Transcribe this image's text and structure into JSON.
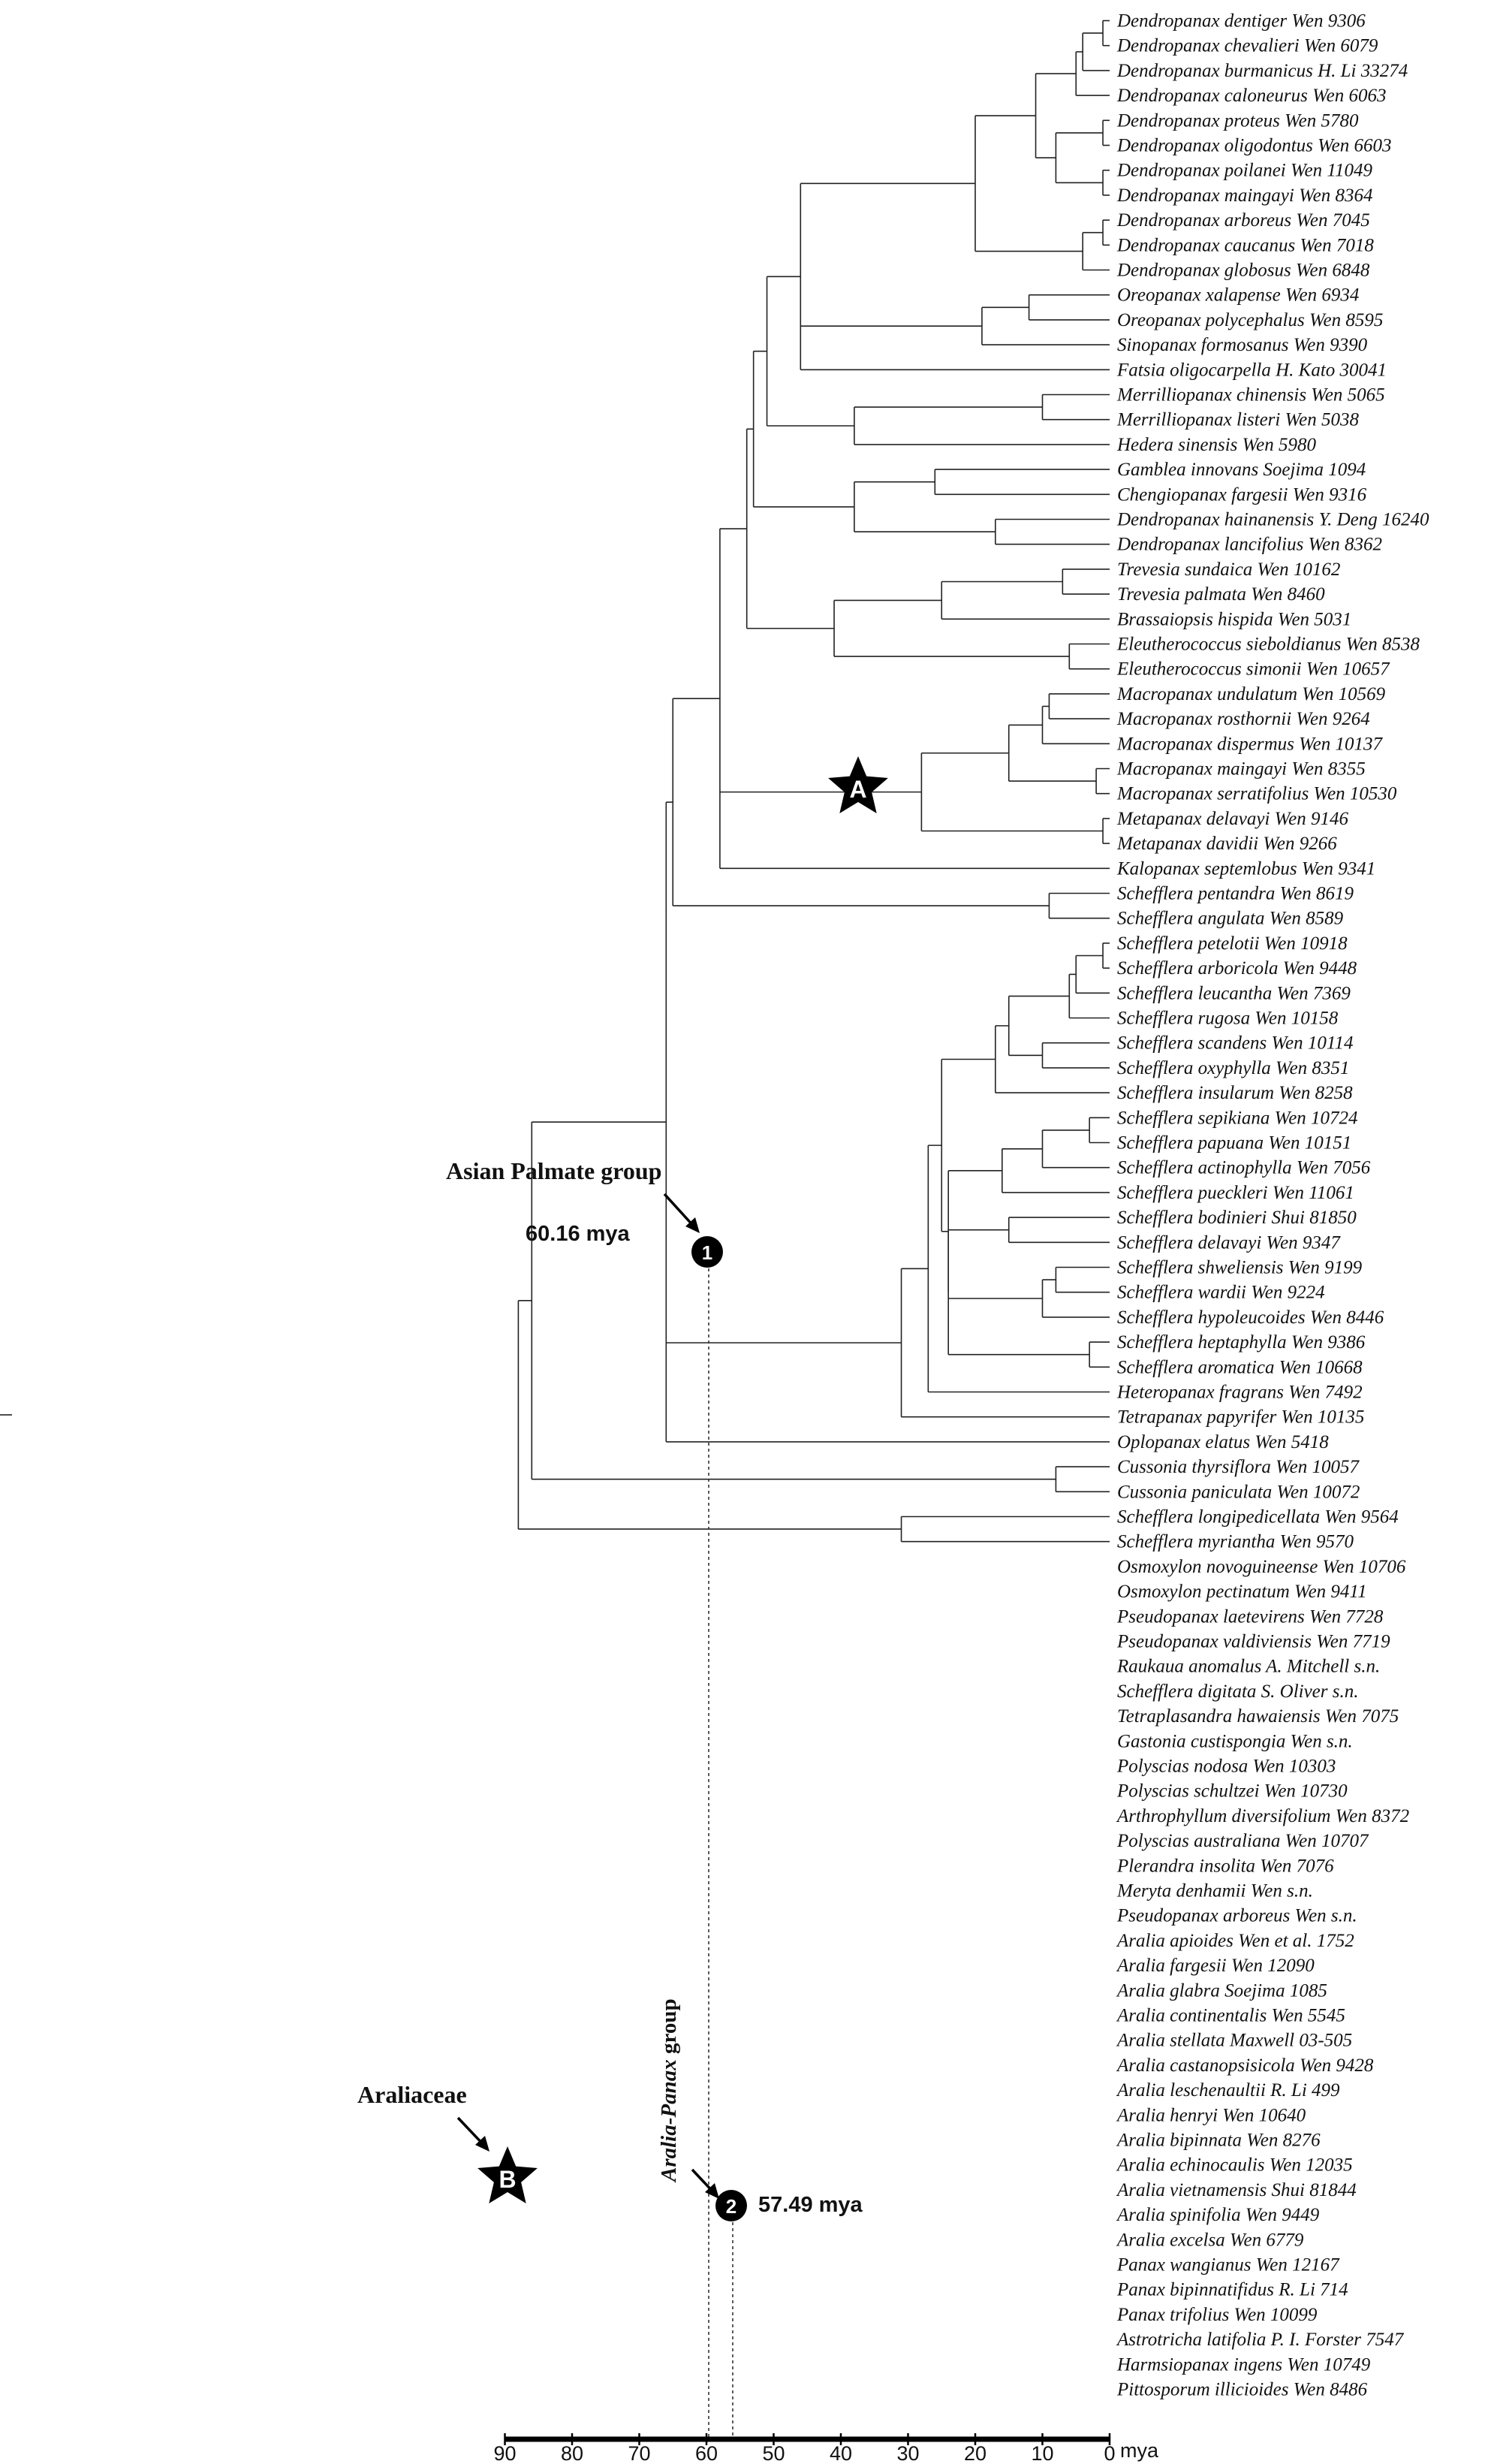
{
  "taxa": [
    "Dendropanax dentiger Wen 9306",
    "Dendropanax chevalieri Wen 6079",
    "Dendropanax burmanicus H. Li 33274",
    "Dendropanax caloneurus Wen 6063",
    "Dendropanax proteus Wen 5780",
    "Dendropanax oligodontus Wen 6603",
    "Dendropanax poilanei Wen 11049",
    "Dendropanax maingayi Wen 8364",
    "Dendropanax arboreus Wen 7045",
    "Dendropanax caucanus Wen 7018",
    "Dendropanax globosus Wen 6848",
    "Oreopanax xalapense Wen 6934",
    "Oreopanax polycephalus Wen 8595",
    "Sinopanax formosanus Wen 9390",
    "Fatsia oligocarpella H. Kato 30041",
    "Merrilliopanax chinensis Wen 5065",
    "Merrilliopanax listeri Wen 5038",
    "Hedera sinensis Wen 5980",
    "Gamblea innovans Soejima 1094",
    "Chengiopanax fargesii Wen 9316",
    "Dendropanax hainanensis Y. Deng 16240",
    "Dendropanax lancifolius Wen 8362",
    "Trevesia sundaica Wen 10162",
    "Trevesia palmata Wen 8460",
    "Brassaiopsis hispida Wen 5031",
    "Eleutherococcus sieboldianus Wen 8538",
    "Eleutherococcus simonii Wen 10657",
    "Macropanax undulatum Wen 10569",
    "Macropanax rosthornii Wen 9264",
    "Macropanax dispermus Wen 10137",
    "Macropanax maingayi Wen 8355",
    "Macropanax serratifolius Wen 10530",
    "Metapanax delavayi Wen 9146",
    "Metapanax davidii Wen 9266",
    "Kalopanax septemlobus Wen 9341",
    "Schefflera pentandra Wen 8619",
    "Schefflera angulata Wen 8589",
    "Schefflera petelotii Wen 10918",
    "Schefflera arboricola Wen 9448",
    "Schefflera leucantha Wen 7369",
    "Schefflera rugosa Wen 10158",
    "Schefflera scandens Wen 10114",
    "Schefflera oxyphylla Wen 8351",
    "Schefflera insularum Wen 8258",
    "Schefflera sepikiana Wen 10724",
    "Schefflera papuana Wen 10151",
    "Schefflera actinophylla Wen 7056",
    "Schefflera pueckleri Wen 11061",
    "Schefflera bodinieri Shui 81850",
    "Schefflera delavayi Wen 9347",
    "Schefflera shweliensis Wen 9199",
    "Schefflera wardii Wen 9224",
    "Schefflera hypoleucoides Wen 8446",
    "Schefflera heptaphylla Wen 9386",
    "Schefflera aromatica Wen 10668",
    "Heteropanax fragrans Wen 7492",
    "Tetrapanax papyrifer Wen 10135",
    "Oplopanax elatus Wen 5418",
    "Cussonia thyrsiflora Wen 10057",
    "Cussonia paniculata Wen 10072",
    "Schefflera longipedicellata Wen 9564",
    "Schefflera myriantha Wen 9570",
    "Osmoxylon novoguineense Wen 10706",
    "Osmoxylon pectinatum Wen 9411",
    "Pseudopanax laetevirens Wen 7728",
    "Pseudopanax valdiviensis Wen 7719",
    "Raukaua anomalus A. Mitchell s.n.",
    "Schefflera digitata S. Oliver s.n.",
    "Tetraplasandra hawaiensis Wen 7075",
    "Gastonia custispongia Wen s.n.",
    "Polyscias nodosa Wen 10303",
    "Polyscias schultzei Wen 10730",
    "Arthrophyllum diversifolium Wen 8372",
    "Polyscias australiana Wen 10707",
    "Plerandra insolita Wen 7076",
    "Meryta denhamii Wen s.n.",
    "Pseudopanax arboreus Wen s.n.",
    "Aralia apioides Wen et al. 1752",
    "Aralia fargesii Wen 12090",
    "Aralia glabra Soejima 1085",
    "Aralia continentalis Wen 5545",
    "Aralia stellata Maxwell 03-505",
    "Aralia castanopsisicola Wen 9428",
    "Aralia leschenaultii R. Li 499",
    "Aralia henryi Wen 10640",
    "Aralia bipinnata Wen 8276",
    "Aralia echinocaulis Wen 12035",
    "Aralia vietnamensis Shui 81844",
    "Aralia spinifolia Wen 9449",
    "Aralia excelsa Wen 6779",
    "Panax wangianus Wen 12167",
    "Panax bipinnatifidus R. Li 714",
    "Panax trifolius Wen 10099",
    "Astrotricha latifolia P. I. Forster 7547",
    "Harmsiopanax ingens Wen 10749",
    "Pittosporum illicioides Wen 8486"
  ],
  "tree": "((((((((((((((0:1,1:1):3,2:4):1,3:5):6,((4:1,5:1):7,(6:1,7:1):7):2):9,((8:1,9:1):3,10:4):12):26,((11:12,12:12):7,13:19):12,14:31):5,((15:10,16:10):28,17:38):4):2,((18:26,19:26):12,(20:17,21:17):21):5):1,(((22:7,23:7):18,24:25):16,(25:6,26:6):35):3):4,((((27:9,28:9):1,29:10):4,(30:2,31:2):13):12,(32:1,33:1):27):6,34:33):7,(35:9,36:9):45):1,((((((((37:1,38:1):4,39:5):1,40:6):8,(41:10,42:10):5):2,43:16):8,((((44:3,45:3):7,46:10):6,47:16):8,((48:15,49:15):9,((50:8,51:8):2,52:10):14,(53:3,54:3):21):0):0):2,55:26):4,56:30):10,57:40):20,(58:8,59:8):52):2,(60:31,61:31):31):4,(62:15,63:15):51):2,((((64:49,65:49):10,(66:49,67:49):10):0,((((68:23,69:23):16,70:39):10,(71:24,72:24):25):10,73:59):0,(74:20,75:20):40):1,76:37):18):4,((((((77:1,78:1):10,79:11):22,((80:1,81:1):10,82:11):22):5,83:38):7,(((84:8,85:8):18,86:26):22,(87:5,88:5):21):5):5,89:50):7,((90:10,91:10):26,92:36):21):1,((93:72):4):0):14,94:90):24,95:114)",
  "axis": {
    "ticks": [
      90,
      80,
      70,
      60,
      50,
      40,
      30,
      20,
      10,
      0
    ],
    "unit_label": "mya",
    "max": 90,
    "min": 0
  },
  "annotations": {
    "asian_palmate": {
      "label": "Asian Palmate group",
      "node_number": "1",
      "age_text": "60.16 mya"
    },
    "aralia_panax": {
      "label_italic": "Aralia-Panax",
      "label_rest": " group",
      "node_number": "2",
      "age_text": "57.49 mya"
    },
    "araliaceae": {
      "label": "Araliaceae",
      "star_letter": "B"
    },
    "star_a": {
      "star_letter": "A"
    }
  }
}
